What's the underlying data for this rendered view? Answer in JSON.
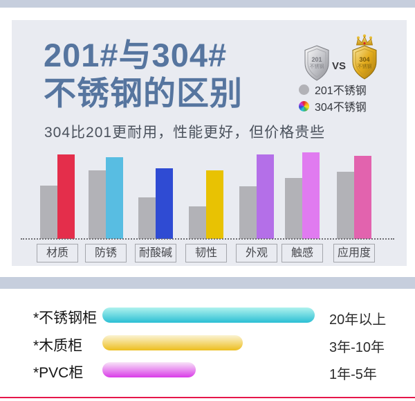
{
  "page": {
    "title_line1": "201#与304#",
    "title_line2": "不锈钢的区别",
    "subtitle": "304比201更耐用，性能更好，但价格贵些",
    "accent_blue": "#56759F",
    "band_color": "#C6CEDD",
    "card_bg": "#E9EBF1",
    "red_line_color": "#E6164A"
  },
  "versus": {
    "vs_label": "VS",
    "left_shield": {
      "metal": "silver",
      "line1": "201",
      "line2": "不锈钢"
    },
    "right_shield": {
      "metal": "gold",
      "line1": "304",
      "line2": "不锈钢"
    }
  },
  "legend": [
    {
      "swatch": "gray-dot",
      "label": "201不锈钢",
      "color": "#B2B2B7"
    },
    {
      "swatch": "rainbow-dot",
      "label": "304不锈钢"
    }
  ],
  "chart_data": [
    {
      "type": "bar",
      "title": "201#与304#不锈钢的区别",
      "subtitle": "304比201更耐用，性能更好，但价格贵些",
      "categories": [
        "材质",
        "防锈",
        "耐酸碱",
        "韧性",
        "外观",
        "触感",
        "应用度"
      ],
      "series": [
        {
          "name": "201不锈钢",
          "color": "#B2B2B7",
          "values": [
            60,
            77,
            47,
            37,
            59,
            69,
            76
          ]
        },
        {
          "name": "304不锈钢",
          "colors": [
            "#E42E4B",
            "#58BDE2",
            "#2F4BD3",
            "#E8C203",
            "#B46FE8",
            "#E07BF0",
            "#E263AE"
          ],
          "values": [
            95,
            92,
            80,
            77,
            95,
            98,
            94
          ]
        }
      ],
      "ylim": [
        0,
        100
      ],
      "xlabel": "",
      "ylabel": "",
      "grid": "none (dotted baseline only)",
      "legend_position": "top-right"
    },
    {
      "type": "bar",
      "orientation": "horizontal",
      "rows": [
        {
          "label": "*不锈钢柜",
          "value_label": "20年以上",
          "pct": 100,
          "gradient": [
            "#AFF2EE",
            "#2BBFD4"
          ]
        },
        {
          "label": "*木质柜",
          "value_label": "3年-10年",
          "pct": 66,
          "gradient": [
            "#FBF3D3",
            "#EDBE1E"
          ]
        },
        {
          "label": "*PVC柜",
          "value_label": "1年-5年",
          "pct": 44,
          "gradient": [
            "#F8E3F8",
            "#D93BE8"
          ]
        }
      ]
    }
  ]
}
